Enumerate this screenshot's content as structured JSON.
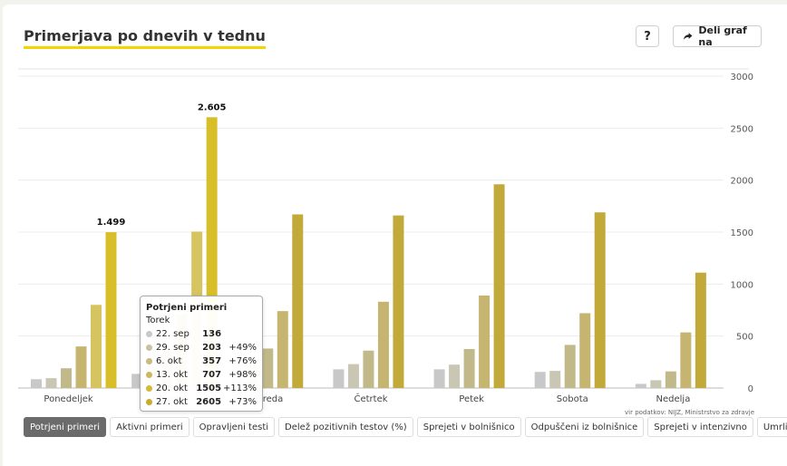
{
  "header": {
    "title": "Primerjava po dnevih v tednu",
    "help_label": "?",
    "share_label": "Deli graf na"
  },
  "source_note": "vir podatkov: NIJZ, Ministrstvo za zdravje",
  "tooltip": {
    "title": "Potrjeni primeri",
    "day": "Torek",
    "rows": [
      {
        "date": "22. sep",
        "value": "136",
        "change": "",
        "color": "#c8c8c8"
      },
      {
        "date": "29. sep",
        "value": "203",
        "change": "+49%",
        "color": "#c9c2a2"
      },
      {
        "date": "6. okt",
        "value": "357",
        "change": "+76%",
        "color": "#c9ba7e"
      },
      {
        "date": "13. okt",
        "value": "707",
        "change": "+98%",
        "color": "#cdb95a"
      },
      {
        "date": "20. okt",
        "value": "1505",
        "change": "+113%",
        "color": "#d4bb35"
      },
      {
        "date": "27. okt",
        "value": "2605",
        "change": "+73%",
        "color": "#c9ad2a"
      }
    ]
  },
  "tabs": [
    {
      "label": "Potrjeni primeri",
      "active": true
    },
    {
      "label": "Aktivni primeri",
      "active": false
    },
    {
      "label": "Opravljeni testi",
      "active": false
    },
    {
      "label": "Delež pozitivnih testov (%)",
      "active": false
    },
    {
      "label": "Sprejeti v bolnišnico",
      "active": false
    },
    {
      "label": "Odpuščeni iz bolnišnice",
      "active": false
    },
    {
      "label": "Sprejeti v intenzivno",
      "active": false
    },
    {
      "label": "Umrli",
      "active": false
    }
  ],
  "chart_data": {
    "type": "bar",
    "categories": [
      "Ponedeljek",
      "Torek",
      "Sreda",
      "Četrtek",
      "Petek",
      "Sobota",
      "Nedelja"
    ],
    "ylim": [
      0,
      3000
    ],
    "yticks": [
      0,
      500,
      1000,
      1500,
      2000,
      2500,
      3000
    ],
    "grid": true,
    "series": [
      {
        "name": "22. sep",
        "color": "#c8c8c8",
        "values": [
          85,
          136,
          190,
          180,
          180,
          155,
          40
        ]
      },
      {
        "name": "29. sep",
        "color": "#c9c6b3",
        "values": [
          95,
          203,
          205,
          230,
          225,
          165,
          75
        ]
      },
      {
        "name": "6. okt",
        "color": "#c2b98a",
        "values": [
          190,
          357,
          380,
          360,
          375,
          415,
          160
        ]
      },
      {
        "name": "13. okt",
        "color": "#c5b570",
        "values": [
          400,
          707,
          740,
          830,
          890,
          720,
          535
        ]
      },
      {
        "name": "20. okt",
        "color": "#d6c460",
        "values": [
          800,
          1505,
          1670,
          1660,
          1960,
          1690,
          1110
        ]
      },
      {
        "name": "27. okt",
        "color": "#d8bf2a",
        "values": [
          1499,
          2605,
          null,
          null,
          null,
          null,
          null
        ]
      }
    ],
    "series_colors_alt": [
      "#c8c8c8",
      "#c9c6b3",
      "#c2b98a",
      "#c5b570",
      "#c2aa3a"
    ],
    "data_labels": [
      {
        "category": "Ponedeljek",
        "text": "1.499",
        "value": 1499
      },
      {
        "category": "Torek",
        "text": "2.605",
        "value": 2605
      }
    ]
  }
}
